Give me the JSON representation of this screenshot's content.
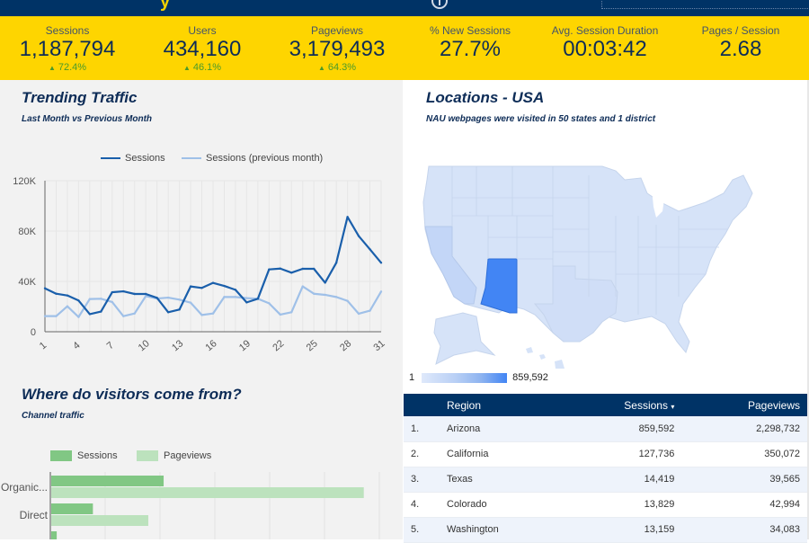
{
  "header": {
    "title_fragment": "y",
    "date_range_fragment": ""
  },
  "kpis": [
    {
      "label": "Sessions",
      "value": "1,187,794",
      "delta": "72.4%",
      "delta_icon": "arrow-up-icon"
    },
    {
      "label": "Users",
      "value": "434,160",
      "delta": "46.1%",
      "delta_icon": "arrow-up-icon"
    },
    {
      "label": "Pageviews",
      "value": "3,179,493",
      "delta": "64.3%",
      "delta_icon": "arrow-up-icon"
    },
    {
      "label": "% New Sessions",
      "value": "27.7%"
    },
    {
      "label": "Avg. Session Duration",
      "value": "00:03:42"
    },
    {
      "label": "Pages / Session",
      "value": "2.68"
    }
  ],
  "trending": {
    "title": "Trending Traffic",
    "subtitle": "Last Month vs Previous Month"
  },
  "locations": {
    "title": "Locations - USA",
    "subtitle": "NAU webpages were visited in 50 states and 1 district",
    "legend_min": "1",
    "legend_max": "859,592",
    "highlight_color": "#4285f4",
    "base_color": "#d6e3f8"
  },
  "channels": {
    "title": "Where do visitors come from?",
    "subtitle": "Channel traffic"
  },
  "region_table": {
    "headers": {
      "region": "Region",
      "sessions": "Sessions",
      "sort_icon": "▾",
      "pageviews": "Pageviews"
    },
    "rows": [
      {
        "rank": "1.",
        "region": "Arizona",
        "sessions": "859,592",
        "pageviews": "2,298,732"
      },
      {
        "rank": "2.",
        "region": "California",
        "sessions": "127,736",
        "pageviews": "350,072"
      },
      {
        "rank": "3.",
        "region": "Texas",
        "sessions": "14,419",
        "pageviews": "39,565"
      },
      {
        "rank": "4.",
        "region": "Colorado",
        "sessions": "13,829",
        "pageviews": "42,994"
      },
      {
        "rank": "5.",
        "region": "Washington",
        "sessions": "13,159",
        "pageviews": "34,083"
      }
    ]
  },
  "colors": {
    "navy": "#003366",
    "yellow": "#fed500",
    "sessions_line": "#1a5fab",
    "prev_line": "#9fc0e8",
    "bar_sessions": "#81c784",
    "bar_pageviews": "#bce2bd"
  },
  "chart_data": [
    {
      "type": "line",
      "title": "Trending Traffic",
      "subtitle": "Last Month vs Previous Month",
      "x": [
        1,
        2,
        3,
        4,
        5,
        6,
        7,
        8,
        9,
        10,
        11,
        12,
        13,
        14,
        15,
        16,
        17,
        18,
        19,
        20,
        21,
        22,
        23,
        24,
        25,
        26,
        27,
        28,
        29,
        30,
        31
      ],
      "x_tick_labels": [
        "1",
        "4",
        "7",
        "10",
        "13",
        "16",
        "19",
        "22",
        "25",
        "28",
        "31"
      ],
      "y_tick_labels": [
        "0",
        "40K",
        "80K",
        "120K"
      ],
      "ylim": [
        0,
        120000
      ],
      "legend_position": "top",
      "grid": true,
      "series": [
        {
          "name": "Sessions",
          "values": [
            34500,
            30200,
            28800,
            24800,
            14000,
            16000,
            31400,
            32100,
            30000,
            30000,
            26900,
            15500,
            17600,
            36000,
            34800,
            38800,
            36400,
            33300,
            23300,
            26200,
            49500,
            50200,
            46900,
            50000,
            50000,
            39000,
            54800,
            91200,
            76000,
            65500,
            54800
          ]
        },
        {
          "name": "Sessions (previous month)",
          "values": [
            12400,
            12400,
            20200,
            11700,
            26000,
            26200,
            23600,
            12400,
            14500,
            28300,
            26400,
            27100,
            25500,
            23100,
            13300,
            14500,
            27600,
            27600,
            26700,
            26200,
            22600,
            13600,
            15500,
            36000,
            30200,
            29300,
            27600,
            24500,
            14300,
            16700,
            31900
          ]
        }
      ]
    },
    {
      "type": "bar",
      "orientation": "horizontal",
      "title": "Where do visitors come from?",
      "subtitle": "Channel traffic",
      "categories": [
        "Organic...",
        "Direct",
        ""
      ],
      "legend_position": "top",
      "grid": true,
      "series": [
        {
          "name": "Sessions",
          "values": [
            2.05,
            0.76,
            0.1
          ]
        },
        {
          "name": "Pageviews",
          "values": [
            5.7,
            1.77,
            0
          ]
        }
      ]
    }
  ]
}
